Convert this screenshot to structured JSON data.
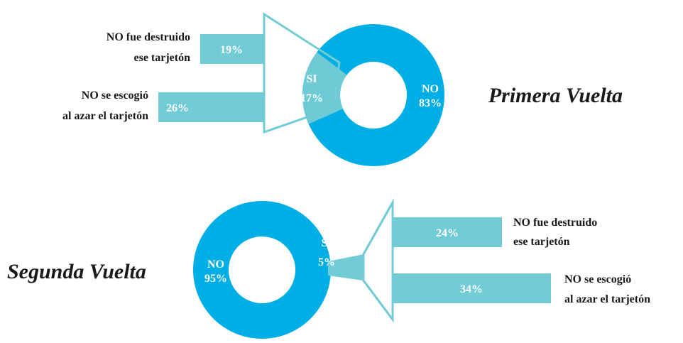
{
  "colors": {
    "donut": "#00aee6",
    "highlight": "#6fcbd5",
    "bar": "#72ccd6",
    "label_text": "#1a1a1a",
    "value_text": "#ffffff"
  },
  "chart_data": [
    {
      "type": "pie",
      "title": "Primera Vuelta",
      "slices": [
        {
          "label": "NO",
          "value": 83,
          "text": "83%"
        },
        {
          "label": "SI",
          "value": 17,
          "text": "17%"
        }
      ],
      "breakdown": {
        "type": "bar",
        "of": "SI",
        "categories": [
          "NO fue destruido ese tarjetón",
          "NO se escogió al azar el tarjetón"
        ],
        "label_lines": [
          [
            "NO fue destruido",
            "ese tarjetón"
          ],
          [
            "NO se escogió",
            "al azar el tarjetón"
          ]
        ],
        "values": [
          19,
          26
        ],
        "value_texts": [
          "19%",
          "26%"
        ]
      }
    },
    {
      "type": "pie",
      "title": "Segunda Vuelta",
      "slices": [
        {
          "label": "NO",
          "value": 95,
          "text": "95%"
        },
        {
          "label": "SI",
          "value": 5,
          "text": "5%"
        }
      ],
      "breakdown": {
        "type": "bar",
        "of": "SI",
        "categories": [
          "NO fue destruido ese tarjetón",
          "NO se escogió al azar el tarjetón"
        ],
        "label_lines": [
          [
            "NO fue destruido",
            "ese tarjetón"
          ],
          [
            "NO se escogió",
            "al azar el tarjetón"
          ]
        ],
        "values": [
          24,
          34
        ],
        "value_texts": [
          "24%",
          "34%"
        ]
      }
    }
  ]
}
